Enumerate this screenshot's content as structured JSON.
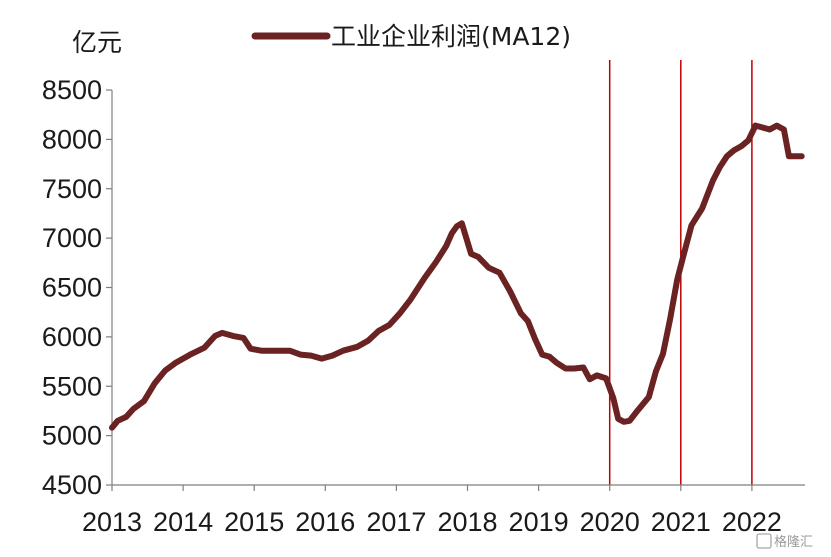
{
  "chart_data": {
    "type": "line",
    "ylabel": "亿元",
    "ylim": [
      4500,
      8500
    ],
    "yticks": [
      4500,
      5000,
      5500,
      6000,
      6500,
      7000,
      7500,
      8000,
      8500
    ],
    "xlim": [
      2013.0,
      2022.7
    ],
    "xticks": [
      "2013",
      "2014",
      "2015",
      "2016",
      "2017",
      "2018",
      "2019",
      "2020",
      "2021",
      "2022"
    ],
    "grid": false,
    "legend_position": "top-center",
    "series": [
      {
        "name": "工业企业利润(MA12)",
        "color": "#6b2222",
        "x": [
          2013.0,
          2013.08,
          2013.2,
          2013.3,
          2013.45,
          2013.6,
          2013.75,
          2013.9,
          2014.1,
          2014.3,
          2014.45,
          2014.55,
          2014.7,
          2014.85,
          2014.95,
          2015.1,
          2015.3,
          2015.5,
          2015.65,
          2015.8,
          2015.95,
          2016.1,
          2016.25,
          2016.45,
          2016.6,
          2016.75,
          2016.9,
          2017.05,
          2017.2,
          2017.4,
          2017.55,
          2017.7,
          2017.78,
          2017.85,
          2017.92,
          2018.05,
          2018.15,
          2018.3,
          2018.45,
          2018.6,
          2018.75,
          2018.85,
          2018.95,
          2019.05,
          2019.15,
          2019.25,
          2019.38,
          2019.5,
          2019.63,
          2019.72,
          2019.82,
          2019.95,
          2020.05,
          2020.12,
          2020.2,
          2020.28,
          2020.4,
          2020.55,
          2020.65,
          2020.75,
          2020.85,
          2020.95,
          2021.05,
          2021.15,
          2021.3,
          2021.45,
          2021.55,
          2021.65,
          2021.75,
          2021.85,
          2021.95,
          2022.05,
          2022.15,
          2022.25,
          2022.35,
          2022.45,
          2022.52,
          2022.6,
          2022.7
        ],
        "values": [
          5080,
          5150,
          5190,
          5270,
          5350,
          5530,
          5660,
          5740,
          5820,
          5890,
          6010,
          6040,
          6010,
          5990,
          5880,
          5860,
          5860,
          5860,
          5820,
          5810,
          5780,
          5810,
          5860,
          5900,
          5960,
          6060,
          6120,
          6240,
          6380,
          6600,
          6750,
          6920,
          7050,
          7120,
          7150,
          6840,
          6810,
          6700,
          6650,
          6460,
          6240,
          6160,
          5980,
          5820,
          5800,
          5740,
          5680,
          5680,
          5690,
          5570,
          5610,
          5580,
          5380,
          5170,
          5140,
          5150,
          5260,
          5390,
          5650,
          5830,
          6180,
          6580,
          6860,
          7130,
          7300,
          7580,
          7720,
          7830,
          7890,
          7930,
          7990,
          8140,
          8120,
          8100,
          8140,
          8100,
          7830,
          7830,
          7830
        ]
      }
    ],
    "vertical_lines": [
      {
        "x": 2020.0,
        "color": "#c00000"
      },
      {
        "x": 2021.0,
        "color": "#c00000"
      },
      {
        "x": 2022.0,
        "color": "#c00000"
      }
    ]
  },
  "watermark": "格隆汇"
}
